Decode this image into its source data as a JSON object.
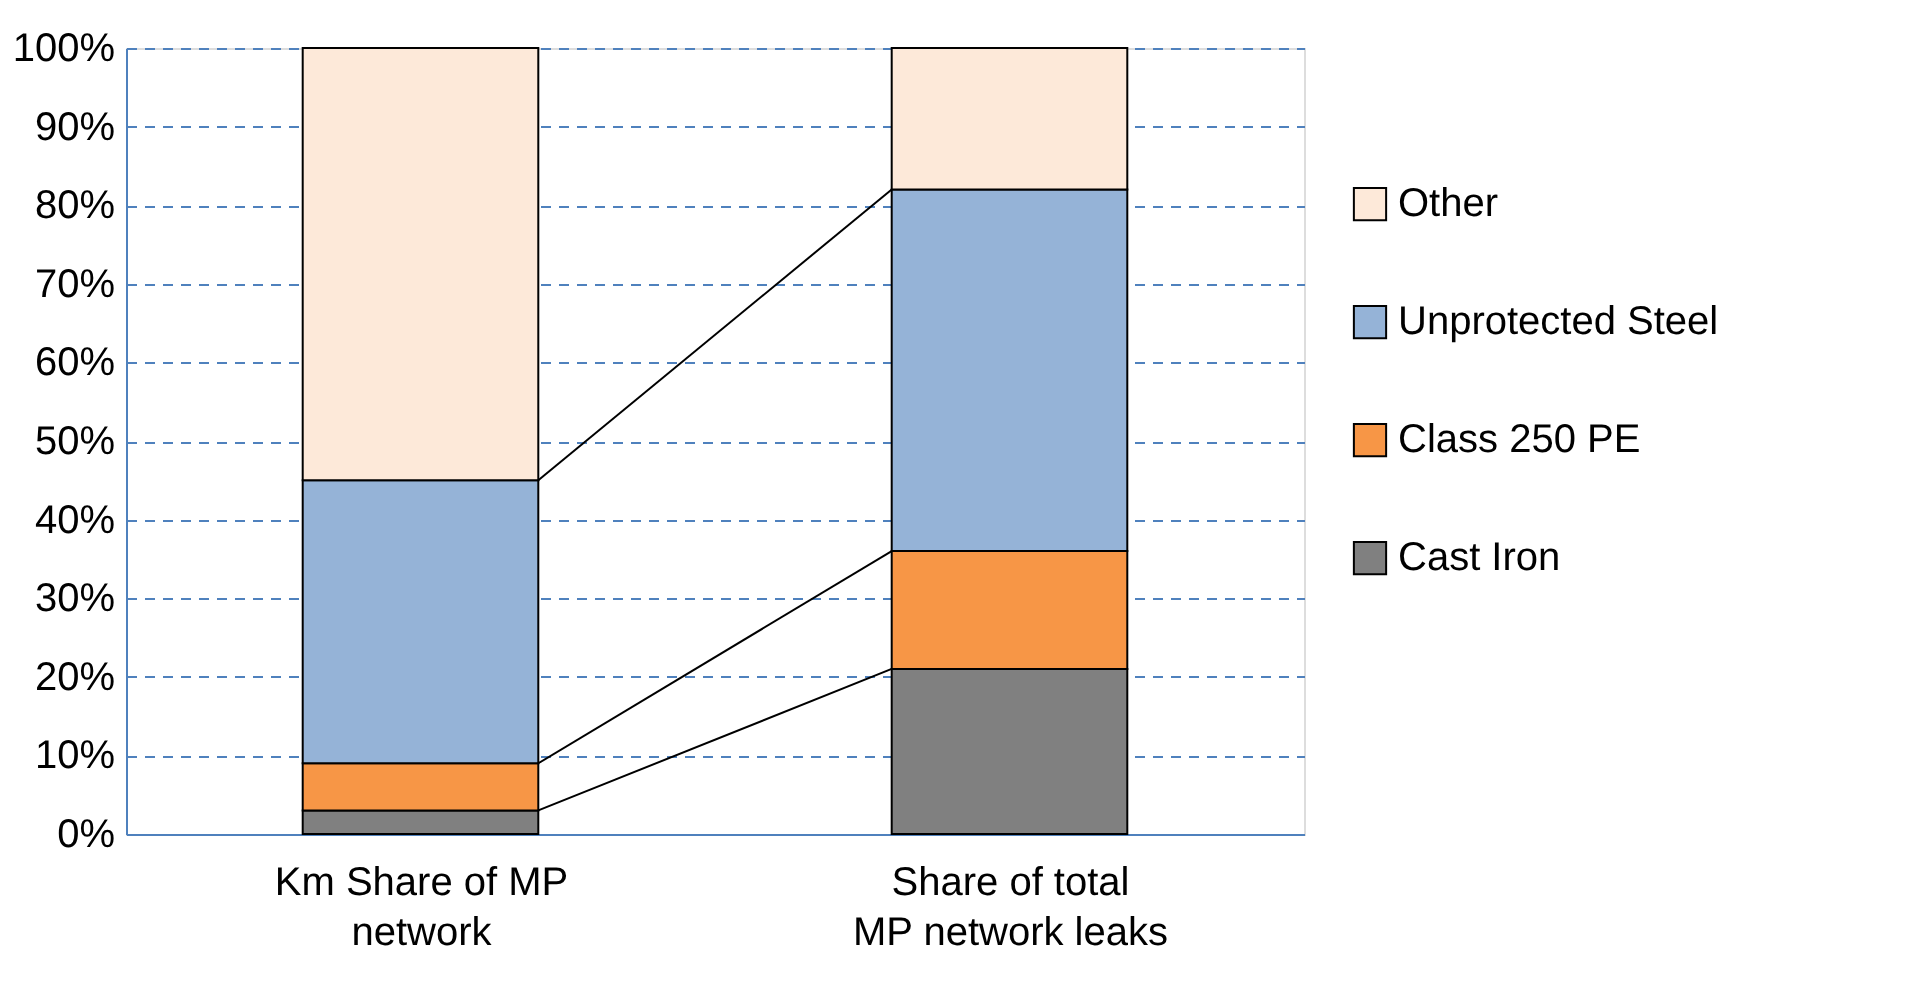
{
  "chart_data": {
    "type": "bar",
    "stacked": true,
    "categories": [
      "Km Share of MP network",
      "Share of total MP network leaks"
    ],
    "series": [
      {
        "name": "Cast Iron",
        "color": "#808080",
        "values": [
          3,
          21
        ]
      },
      {
        "name": "Class 250 PE",
        "color": "#f79646",
        "values": [
          6,
          15
        ]
      },
      {
        "name": "Unprotected Steel",
        "color": "#95b3d7",
        "values": [
          36,
          46
        ]
      },
      {
        "name": "Other",
        "color": "#fde9d9",
        "values": [
          55,
          18
        ]
      }
    ],
    "ylim": [
      0,
      100
    ],
    "yticks": [
      {
        "value": 0,
        "label": "0%"
      },
      {
        "value": 10,
        "label": "10%"
      },
      {
        "value": 20,
        "label": "20%"
      },
      {
        "value": 30,
        "label": "30%"
      },
      {
        "value": 40,
        "label": "40%"
      },
      {
        "value": 50,
        "label": "50%"
      },
      {
        "value": 60,
        "label": "60%"
      },
      {
        "value": 70,
        "label": "70%"
      },
      {
        "value": 80,
        "label": "80%"
      },
      {
        "value": 90,
        "label": "90%"
      },
      {
        "value": 100,
        "label": "100%"
      }
    ],
    "grid": "y",
    "legend": "right"
  }
}
